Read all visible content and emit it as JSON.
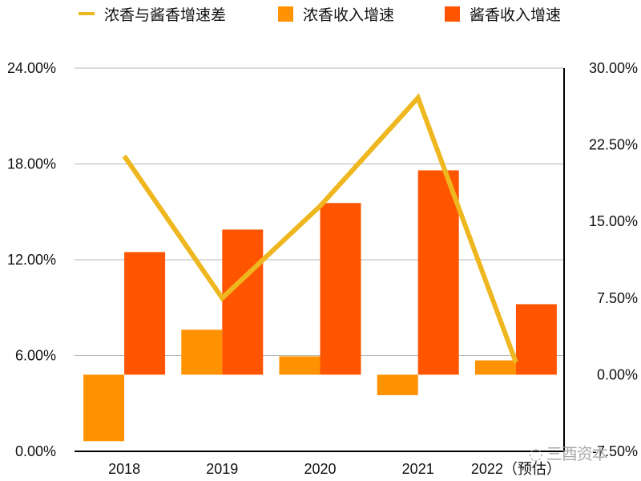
{
  "chart_data": {
    "type": "bar",
    "title": "",
    "categories": [
      "2018",
      "2019",
      "2020",
      "2021",
      "2022（预估）"
    ],
    "series": [
      {
        "name": "浓香收入增速",
        "type": "bar",
        "axis": "right",
        "color": "#FF9200",
        "values": [
          -6.5,
          4.4,
          1.8,
          -2.0,
          1.4
        ]
      },
      {
        "name": "酱香收入增速",
        "type": "bar",
        "axis": "right",
        "color": "#FF5500",
        "values": [
          12.0,
          14.2,
          16.8,
          20.0,
          6.9
        ]
      },
      {
        "name": "浓香与酱香增速差",
        "type": "line",
        "axis": "right",
        "color": "#EFB71F",
        "values": [
          21.4,
          7.5,
          16.5,
          27.1,
          1.2
        ]
      }
    ],
    "left_axis": {
      "ticks": [
        "0.00%",
        "6.00%",
        "12.00%",
        "18.00%",
        "24.00%"
      ],
      "ylim": [
        0,
        24
      ]
    },
    "right_axis": {
      "ticks": [
        "-7.50%",
        "0.00%",
        "7.50%",
        "15.00%",
        "22.50%",
        "30.00%"
      ],
      "ylim": [
        -7.5,
        30
      ]
    },
    "xlabel": "",
    "ylabel": "",
    "unit": "%",
    "grid": true,
    "legend_position": "top",
    "legend": [
      {
        "label": "浓香与酱香增速差",
        "kind": "line",
        "color": "#EFB71F"
      },
      {
        "label": "浓香收入增速",
        "kind": "box",
        "color": "#FF9200"
      },
      {
        "label": "酱香收入增速",
        "kind": "box",
        "color": "#FF5500"
      }
    ]
  },
  "watermark": {
    "icon": "wechat-icon",
    "text": "三酉资本"
  }
}
